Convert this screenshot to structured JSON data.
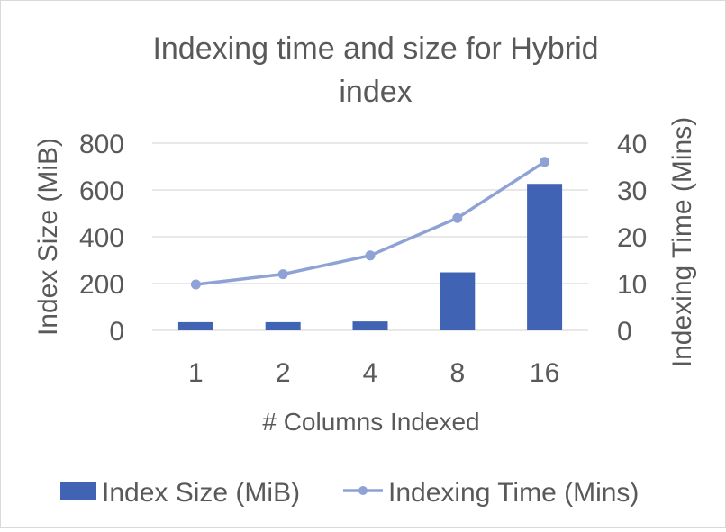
{
  "chart_data": {
    "type": "bar",
    "title": "Indexing time and size for Hybrid index",
    "title_lines": [
      "Indexing time and size for Hybrid",
      "index"
    ],
    "xlabel": "# Columns Indexed",
    "ylabel": "Index Size (MiB)",
    "y2label": "Indexing Time (Mins)",
    "categories": [
      "1",
      "2",
      "4",
      "8",
      "16"
    ],
    "ylim": [
      0,
      800
    ],
    "y2lim": [
      0,
      40
    ],
    "yticks": [
      "0",
      "200",
      "400",
      "600",
      "800"
    ],
    "y2ticks": [
      "0",
      "10",
      "20",
      "30",
      "40"
    ],
    "grid": true,
    "legend_position": "bottom",
    "series": [
      {
        "name": "Index Size (MiB)",
        "type": "bar",
        "axis": "left",
        "color": "#4063b3",
        "values": [
          35,
          35,
          38,
          248,
          626
        ]
      },
      {
        "name": "Indexing Time (Mins)",
        "type": "line",
        "axis": "right",
        "color": "#8ea2d6",
        "values": [
          9.8,
          12,
          16,
          24,
          36
        ]
      }
    ]
  }
}
